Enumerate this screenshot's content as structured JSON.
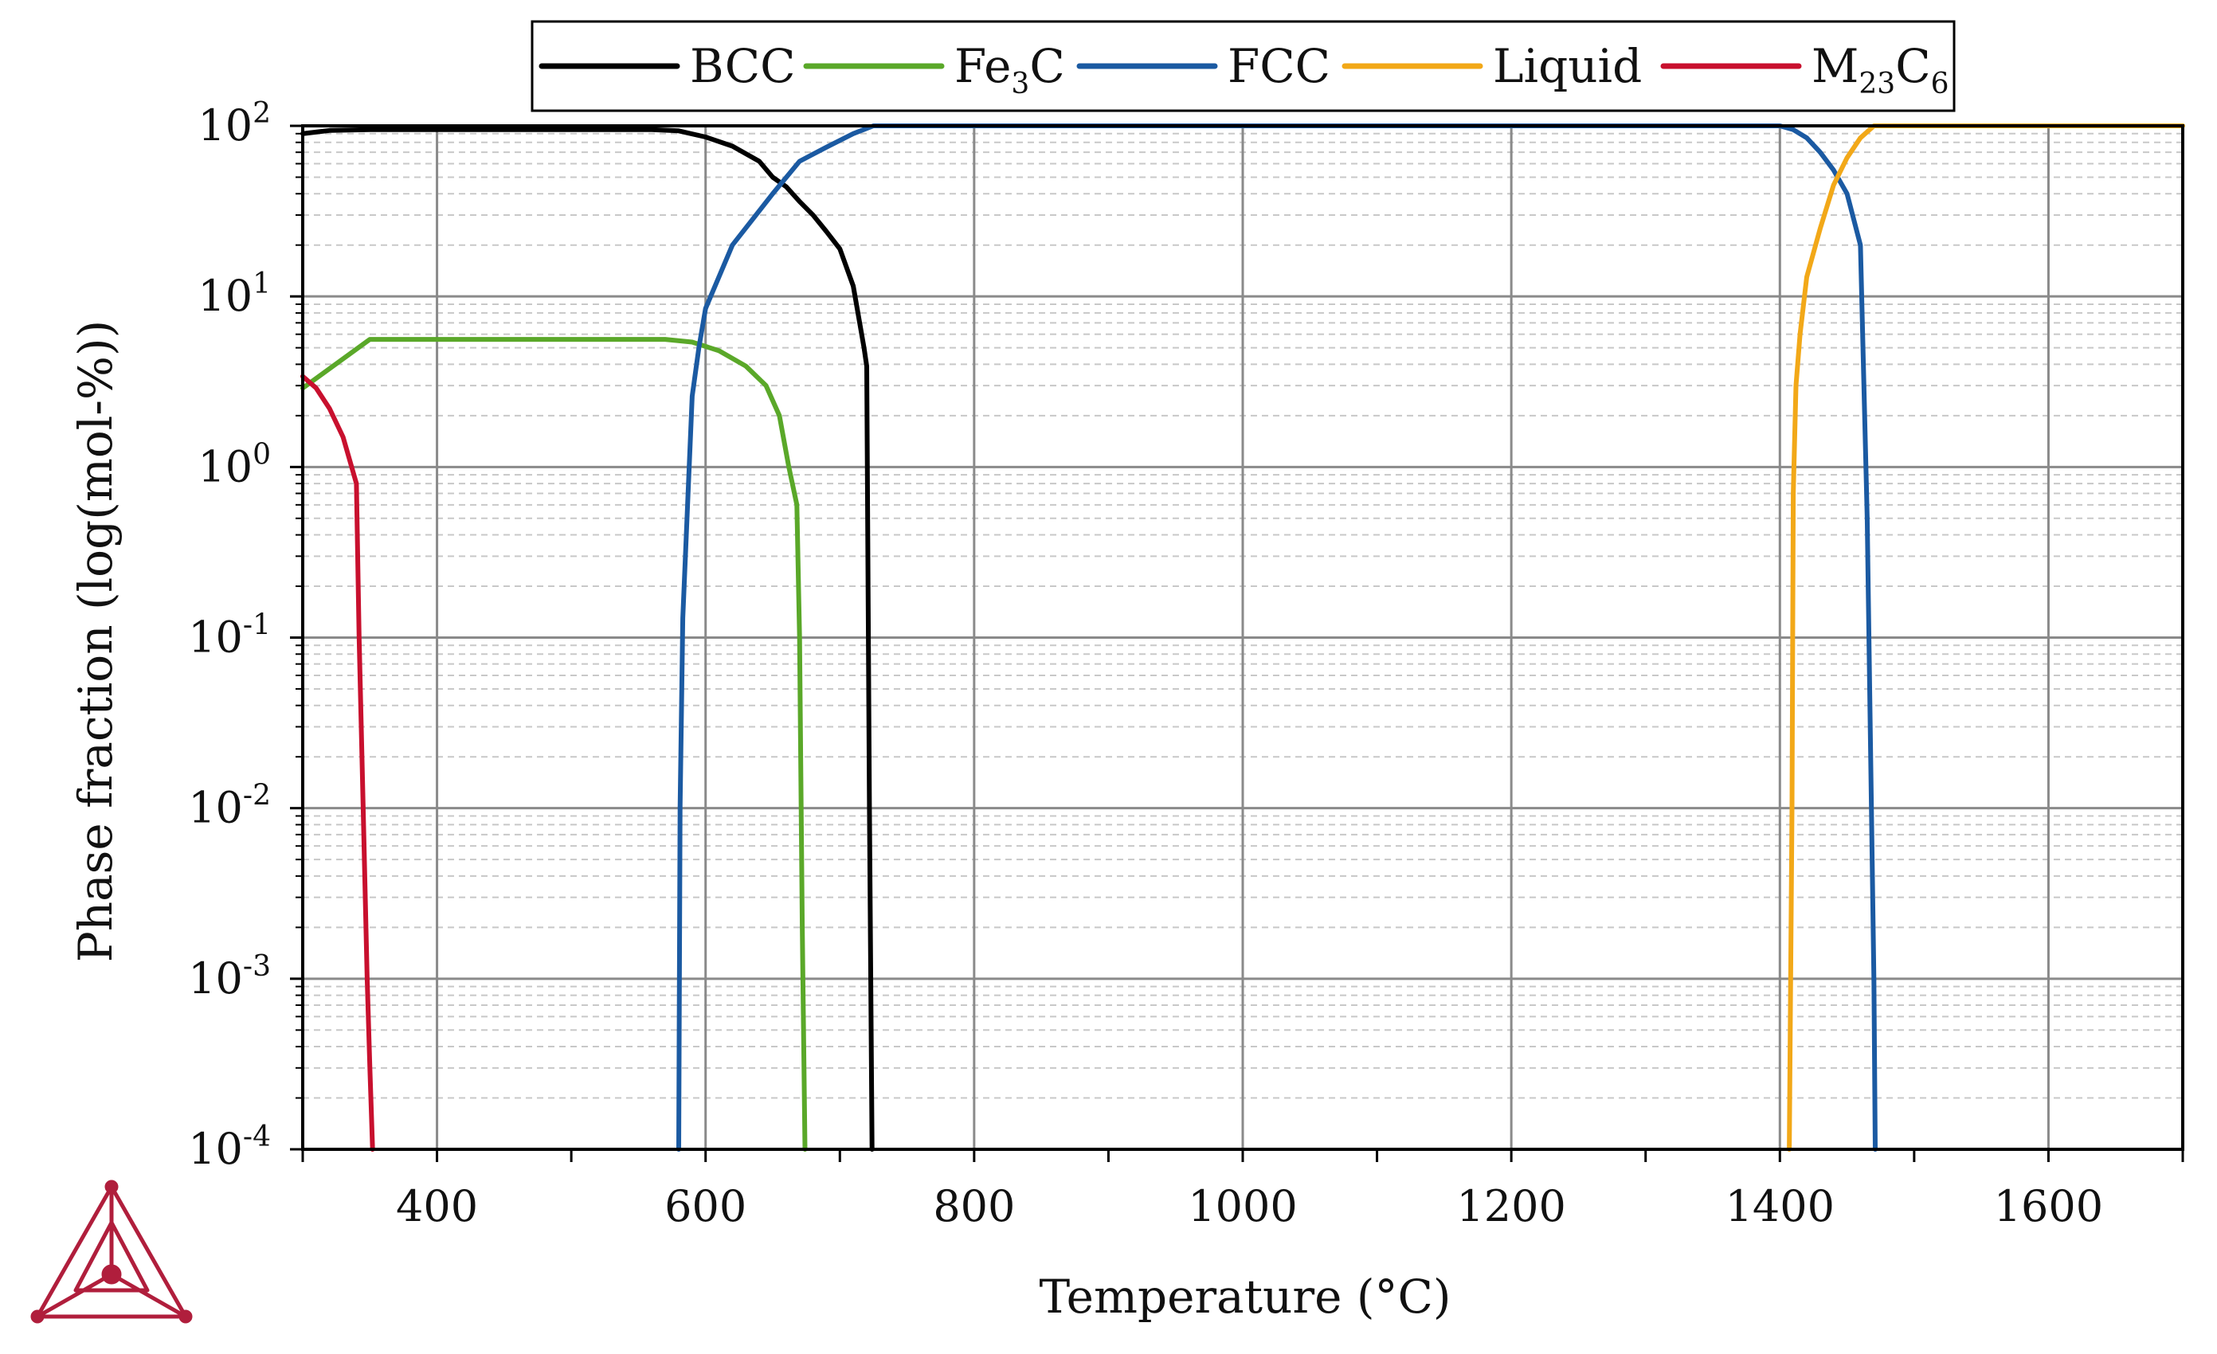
{
  "chart_data": {
    "type": "line",
    "title": "",
    "xlabel": "Temperature (°C)",
    "ylabel": "Phase fraction (log(mol-%))",
    "xlim": [
      300,
      1700
    ],
    "ylim": [
      0.0001,
      100
    ],
    "yscale": "log",
    "grid": true,
    "legend_position": "top",
    "x_ticks": [
      "400",
      "600",
      "800",
      "1000",
      "1200",
      "1400",
      "1600"
    ],
    "y_ticks": [
      {
        "base": "10",
        "exp": "2"
      },
      {
        "base": "10",
        "exp": "1"
      },
      {
        "base": "10",
        "exp": "0"
      },
      {
        "base": "10",
        "exp": "-1"
      },
      {
        "base": "10",
        "exp": "-2"
      },
      {
        "base": "10",
        "exp": "-3"
      },
      {
        "base": "10",
        "exp": "-4"
      }
    ],
    "series": [
      {
        "name": "BCC",
        "label_main": "BCC",
        "label_sub": "",
        "label_tail": "",
        "color": "#000000",
        "x": [
          300,
          320,
          350,
          400,
          500,
          560,
          580,
          600,
          620,
          640,
          650,
          660,
          670,
          680,
          690,
          700,
          710,
          718,
          720,
          722,
          724
        ],
        "y": [
          90,
          94,
          95,
          95,
          95,
          95,
          93.5,
          86,
          76,
          62,
          50,
          44,
          36,
          30,
          24,
          19,
          11.5,
          5,
          3.9,
          0.01,
          0.0001
        ]
      },
      {
        "name": "Fe3C",
        "label_main": "Fe",
        "label_sub": "3",
        "label_tail": "C",
        "color": "#5aa829",
        "x": [
          300,
          350,
          400,
          500,
          570,
          590,
          610,
          630,
          645,
          655,
          662,
          668,
          670,
          672,
          674
        ],
        "y": [
          2.9,
          5.6,
          5.6,
          5.6,
          5.6,
          5.4,
          4.8,
          3.9,
          3.0,
          2.0,
          1.0,
          0.6,
          0.1,
          0.002,
          0.0001
        ]
      },
      {
        "name": "FCC",
        "label_main": "FCC",
        "label_sub": "",
        "label_tail": "",
        "color": "#1b5aa2",
        "x": [
          580,
          581,
          583,
          590,
          595,
          600,
          620,
          650,
          670,
          690,
          710,
          725,
          1000,
          1400,
          1410,
          1420,
          1430,
          1440,
          1450,
          1460,
          1465,
          1470,
          1471
        ],
        "y": [
          0.0001,
          0.01,
          0.13,
          2.6,
          5,
          8.5,
          20,
          40,
          62,
          75,
          90,
          100,
          100,
          100,
          95,
          85,
          70,
          55,
          40,
          20,
          0.5,
          0.001,
          0.0001
        ]
      },
      {
        "name": "Liquid",
        "label_main": "Liquid",
        "label_sub": "",
        "label_tail": "",
        "color": "#f2a818",
        "x": [
          1407,
          1409,
          1410,
          1412,
          1415,
          1420,
          1430,
          1440,
          1450,
          1460,
          1470,
          1500,
          1700
        ],
        "y": [
          0.0001,
          0.01,
          0.7,
          3,
          6,
          13,
          25,
          45,
          65,
          85,
          100,
          100,
          100
        ]
      },
      {
        "name": "M23C6",
        "label_main": "M",
        "label_sub": "23",
        "label_tail": "C",
        "label_sub2": "6",
        "color": "#c8102e",
        "x": [
          300,
          310,
          320,
          330,
          340,
          342,
          345,
          348,
          350,
          352
        ],
        "y": [
          3.4,
          2.9,
          2.2,
          1.5,
          0.8,
          0.1,
          0.01,
          0.001,
          0.0003,
          0.0001
        ]
      }
    ]
  }
}
